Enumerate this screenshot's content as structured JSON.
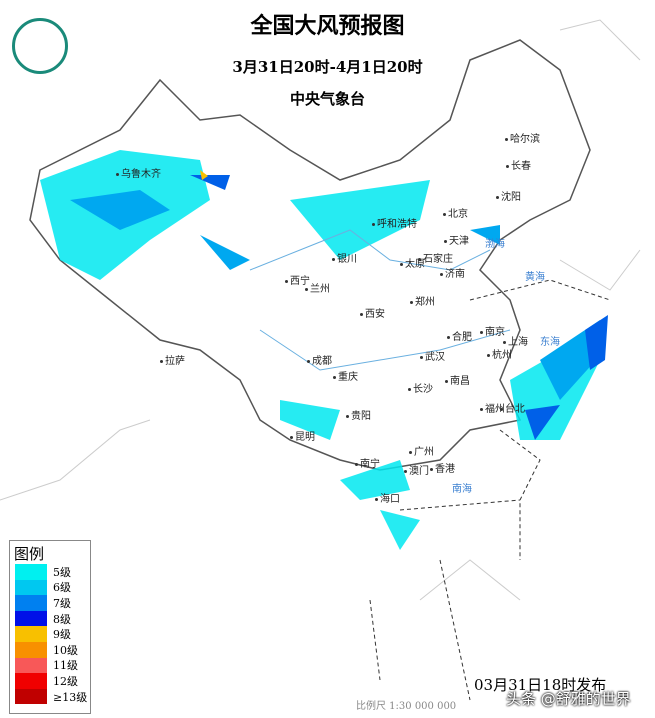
{
  "header": {
    "title": "全国大风预报图",
    "period": "3月31日20时-4月1日20时",
    "issuer": "中央气象台"
  },
  "logo": {
    "text": "中央气象台"
  },
  "cities": [
    "乌鲁木齐",
    "哈尔滨",
    "长春",
    "沈阳",
    "北京",
    "天津",
    "呼和浩特",
    "银川",
    "太原",
    "石家庄",
    "济南",
    "西宁",
    "兰州",
    "西安",
    "郑州",
    "合肥",
    "南京",
    "上海",
    "杭州",
    "武汉",
    "成都",
    "重庆",
    "长沙",
    "南昌",
    "拉萨",
    "贵阳",
    "昆明",
    "福州",
    "台北",
    "南宁",
    "广州",
    "澳门",
    "香港",
    "海口"
  ],
  "seas": [
    "渤海",
    "黄海",
    "东海",
    "南海"
  ],
  "legend": {
    "title": "图例",
    "items": [
      {
        "label": "5级",
        "color": "#00f0f0"
      },
      {
        "label": "6级",
        "color": "#00c8f0"
      },
      {
        "label": "7级",
        "color": "#0080f0"
      },
      {
        "label": "8级",
        "color": "#0010e8"
      },
      {
        "label": "9级",
        "color": "#f8c000"
      },
      {
        "label": "10级",
        "color": "#f89000"
      },
      {
        "label": "11级",
        "color": "#f85858"
      },
      {
        "label": "12级",
        "color": "#f00000"
      },
      {
        "label": "≥13级",
        "color": "#c00000"
      }
    ]
  },
  "footer": {
    "issued": "03月31日18时发布",
    "scale": "比例尺 1:30 000 000",
    "watermark": "头条 @舒雅的世界"
  }
}
